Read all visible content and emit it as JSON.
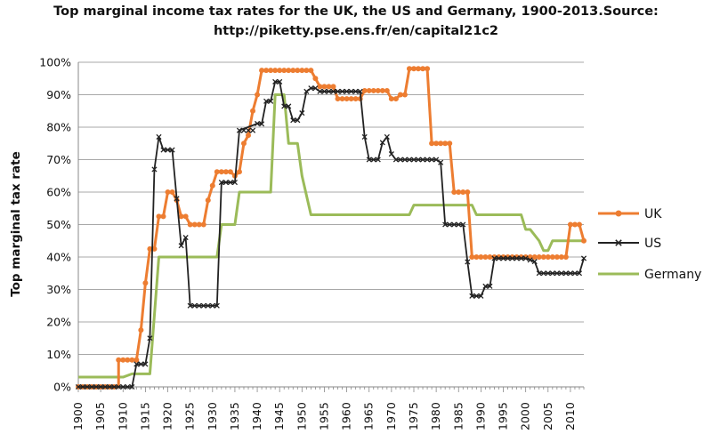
{
  "chart_data": {
    "type": "line",
    "title_line1": "Top marginal income tax rates for the UK, the US and Germany, 1900-2013.Source:",
    "title_line2": "http://piketty.pse.ens.fr/en/capital21c2",
    "xlabel": "",
    "ylabel": "Top marginal tax rate",
    "xlim": [
      1900,
      2013
    ],
    "ylim": [
      0,
      100
    ],
    "x_ticks": [
      1900,
      1905,
      1910,
      1915,
      1920,
      1925,
      1930,
      1935,
      1940,
      1945,
      1950,
      1955,
      1960,
      1965,
      1970,
      1975,
      1980,
      1985,
      1990,
      1995,
      2000,
      2005,
      2010
    ],
    "y_ticks": [
      "0%",
      "10%",
      "20%",
      "30%",
      "40%",
      "50%",
      "60%",
      "70%",
      "80%",
      "90%",
      "100%"
    ],
    "y_values": [
      0,
      10,
      20,
      30,
      40,
      50,
      60,
      70,
      80,
      90,
      100
    ],
    "grid": "horizontal",
    "legend_position": "right",
    "series": [
      {
        "name": "UK",
        "color": "#ED7D31",
        "marker": "circle",
        "points": [
          [
            1900,
            0
          ],
          [
            1909,
            0
          ],
          [
            1909,
            8.3
          ],
          [
            1913,
            8.3
          ],
          [
            1914,
            17.5
          ],
          [
            1915,
            32
          ],
          [
            1916,
            42.5
          ],
          [
            1917,
            42.5
          ],
          [
            1918,
            52.5
          ],
          [
            1919,
            52.5
          ],
          [
            1920,
            60
          ],
          [
            1921,
            60
          ],
          [
            1922,
            57.5
          ],
          [
            1923,
            52.5
          ],
          [
            1924,
            52.5
          ],
          [
            1925,
            50
          ],
          [
            1928,
            50
          ],
          [
            1929,
            57.5
          ],
          [
            1930,
            62
          ],
          [
            1931,
            66.25
          ],
          [
            1934,
            66.25
          ],
          [
            1935,
            65
          ],
          [
            1936,
            66.25
          ],
          [
            1937,
            75
          ],
          [
            1938,
            77.5
          ],
          [
            1939,
            85
          ],
          [
            1940,
            90
          ],
          [
            1941,
            97.5
          ],
          [
            1952,
            97.5
          ],
          [
            1953,
            95
          ],
          [
            1954,
            92.5
          ],
          [
            1955,
            92.5
          ],
          [
            1957,
            92.5
          ],
          [
            1958,
            88.75
          ],
          [
            1963,
            88.75
          ],
          [
            1964,
            91.25
          ],
          [
            1969,
            91.25
          ],
          [
            1970,
            88.75
          ],
          [
            1971,
            88.75
          ],
          [
            1972,
            90
          ],
          [
            1973,
            90
          ],
          [
            1974,
            98
          ],
          [
            1978,
            98
          ],
          [
            1979,
            75
          ],
          [
            1983,
            75
          ],
          [
            1984,
            60
          ],
          [
            1987,
            60
          ],
          [
            1988,
            40
          ],
          [
            2009,
            40
          ],
          [
            2010,
            50
          ],
          [
            2012,
            50
          ],
          [
            2013,
            45
          ]
        ]
      },
      {
        "name": "US",
        "color": "#222222",
        "marker": "x",
        "points": [
          [
            1900,
            0
          ],
          [
            1912,
            0
          ],
          [
            1913,
            7
          ],
          [
            1915,
            7
          ],
          [
            1916,
            15
          ],
          [
            1917,
            67
          ],
          [
            1918,
            77
          ],
          [
            1919,
            73
          ],
          [
            1921,
            73
          ],
          [
            1922,
            58
          ],
          [
            1923,
            43.5
          ],
          [
            1924,
            46
          ],
          [
            1925,
            25
          ],
          [
            1931,
            25
          ],
          [
            1932,
            63
          ],
          [
            1935,
            63
          ],
          [
            1936,
            79
          ],
          [
            1940,
            81.1
          ],
          [
            1941,
            81
          ],
          [
            1942,
            88
          ],
          [
            1943,
            88
          ],
          [
            1944,
            94
          ],
          [
            1945,
            94
          ],
          [
            1946,
            86.45
          ],
          [
            1947,
            86.45
          ],
          [
            1948,
            82.13
          ],
          [
            1949,
            82.13
          ],
          [
            1950,
            84.36
          ],
          [
            1951,
            91
          ],
          [
            1952,
            92
          ],
          [
            1953,
            92
          ],
          [
            1954,
            91
          ],
          [
            1963,
            91
          ],
          [
            1964,
            77
          ],
          [
            1965,
            70
          ],
          [
            1967,
            70
          ],
          [
            1968,
            75.25
          ],
          [
            1969,
            77
          ],
          [
            1970,
            71.75
          ],
          [
            1971,
            70
          ],
          [
            1980,
            70
          ],
          [
            1981,
            69.13
          ],
          [
            1982,
            50
          ],
          [
            1986,
            50
          ],
          [
            1987,
            38.5
          ],
          [
            1988,
            28
          ],
          [
            1990,
            28
          ],
          [
            1991,
            31
          ],
          [
            1992,
            31
          ],
          [
            1993,
            39.6
          ],
          [
            2000,
            39.6
          ],
          [
            2001,
            39.1
          ],
          [
            2002,
            38.6
          ],
          [
            2003,
            35
          ],
          [
            2012,
            35
          ],
          [
            2013,
            39.6
          ]
        ]
      },
      {
        "name": "Germany",
        "color": "#9BBB59",
        "marker": "none",
        "points": [
          [
            1900,
            3
          ],
          [
            1910,
            3
          ],
          [
            1912,
            4
          ],
          [
            1915,
            4
          ],
          [
            1916,
            4
          ],
          [
            1918,
            40
          ],
          [
            1920,
            40
          ],
          [
            1931,
            40
          ],
          [
            1932,
            50
          ],
          [
            1935,
            50
          ],
          [
            1936,
            60
          ],
          [
            1942,
            60
          ],
          [
            1943,
            60
          ],
          [
            1944,
            90
          ],
          [
            1946,
            90
          ],
          [
            1947,
            75
          ],
          [
            1949,
            75
          ],
          [
            1950,
            65
          ],
          [
            1952,
            53
          ],
          [
            1960,
            53
          ],
          [
            1974,
            53
          ],
          [
            1975,
            56
          ],
          [
            1988,
            56
          ],
          [
            1989,
            53
          ],
          [
            1999,
            53
          ],
          [
            2000,
            48.5
          ],
          [
            2001,
            48.5
          ],
          [
            2003,
            45
          ],
          [
            2004,
            42
          ],
          [
            2005,
            42
          ],
          [
            2006,
            45
          ],
          [
            2013,
            45
          ]
        ]
      }
    ]
  }
}
